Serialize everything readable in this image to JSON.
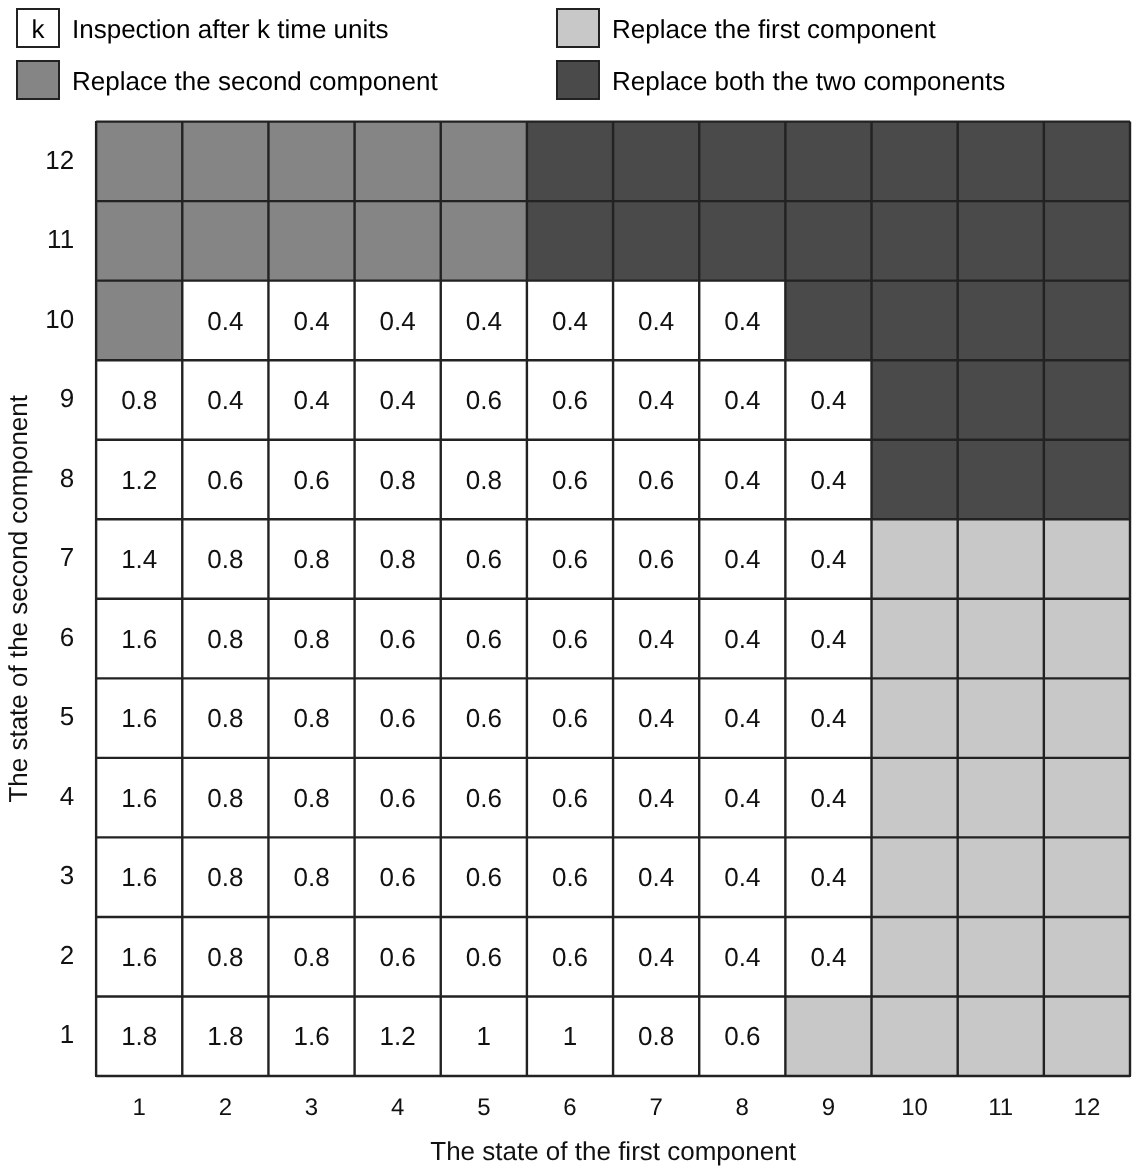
{
  "chart_data": {
    "type": "heatmap",
    "xlabel": "The state of the first component",
    "ylabel": "The state of the second component",
    "categories": [
      "1",
      "2",
      "3",
      "4",
      "5",
      "6",
      "7",
      "8",
      "9",
      "10",
      "11",
      "12"
    ],
    "y_categories": [
      "12",
      "11",
      "10",
      "9",
      "8",
      "7",
      "6",
      "5",
      "4",
      "3",
      "2",
      "1"
    ],
    "legend": "top",
    "data_labels": true,
    "annotations": [
      "k"
    ],
    "series": [
      {
        "name": "Inspection after k time units",
        "color": "#ffffff",
        "values": [
          null,
          null,
          null,
          null,
          null,
          null,
          null,
          null,
          null,
          null,
          null,
          null
        ]
      },
      {
        "name": "Replace the first component",
        "color": "#c8c8c8",
        "values": [
          null,
          null,
          null,
          null,
          null,
          null,
          null,
          null,
          null,
          null,
          null,
          null
        ]
      },
      {
        "name": "Replace the second component",
        "color": "#858585",
        "values": [
          null,
          null,
          null,
          null,
          null,
          null,
          null,
          null,
          null,
          null,
          null,
          null
        ]
      },
      {
        "name": "Replace both the two components",
        "color": "#4a4a4a",
        "values": [
          null,
          null,
          null,
          null,
          null,
          null,
          null,
          null,
          null,
          null,
          null,
          null
        ]
      }
    ],
    "cells": [
      [
        null,
        null,
        null,
        null,
        null,
        null,
        null,
        null,
        null,
        null,
        null,
        null
      ],
      [
        null,
        null,
        null,
        null,
        null,
        null,
        null,
        null,
        null,
        null,
        null,
        null
      ],
      [
        null,
        0.4,
        0.4,
        0.4,
        0.4,
        0.4,
        0.4,
        0.4,
        null,
        null,
        null,
        null
      ],
      [
        0.8,
        0.4,
        0.4,
        0.4,
        0.6,
        0.6,
        0.4,
        0.4,
        0.4,
        null,
        null,
        null
      ],
      [
        1.2,
        0.6,
        0.6,
        0.8,
        0.8,
        0.6,
        0.6,
        0.4,
        0.4,
        null,
        null,
        null
      ],
      [
        1.4,
        0.8,
        0.8,
        0.8,
        0.6,
        0.6,
        0.6,
        0.4,
        0.4,
        null,
        null,
        null
      ],
      [
        1.6,
        0.8,
        0.8,
        0.6,
        0.6,
        0.6,
        0.4,
        0.4,
        0.4,
        null,
        null,
        null
      ],
      [
        1.6,
        0.8,
        0.8,
        0.6,
        0.6,
        0.6,
        0.4,
        0.4,
        0.4,
        null,
        null,
        null
      ],
      [
        1.6,
        0.8,
        0.8,
        0.6,
        0.6,
        0.6,
        0.4,
        0.4,
        0.4,
        null,
        null,
        null
      ],
      [
        1.6,
        0.8,
        0.8,
        0.6,
        0.6,
        0.6,
        0.4,
        0.4,
        0.4,
        null,
        null,
        null
      ],
      [
        1.6,
        0.8,
        0.8,
        0.6,
        0.6,
        0.6,
        0.4,
        0.4,
        0.4,
        null,
        null,
        null
      ],
      [
        1.8,
        1.8,
        1.6,
        1.2,
        1,
        1,
        0.8,
        0.6,
        null,
        null,
        null,
        null
      ]
    ],
    "colors": [
      [
        "#858585",
        "#858585",
        "#858585",
        "#858585",
        "#858585",
        "#4a4a4a",
        "#4a4a4a",
        "#4a4a4a",
        "#4a4a4a",
        "#4a4a4a",
        "#4a4a4a",
        "#4a4a4a"
      ],
      [
        "#858585",
        "#858585",
        "#858585",
        "#858585",
        "#858585",
        "#4a4a4a",
        "#4a4a4a",
        "#4a4a4a",
        "#4a4a4a",
        "#4a4a4a",
        "#4a4a4a",
        "#4a4a4a"
      ],
      [
        "#858585",
        "#ffffff",
        "#ffffff",
        "#ffffff",
        "#ffffff",
        "#ffffff",
        "#ffffff",
        "#ffffff",
        "#4a4a4a",
        "#4a4a4a",
        "#4a4a4a",
        "#4a4a4a"
      ],
      [
        "#ffffff",
        "#ffffff",
        "#ffffff",
        "#ffffff",
        "#ffffff",
        "#ffffff",
        "#ffffff",
        "#ffffff",
        "#ffffff",
        "#4a4a4a",
        "#4a4a4a",
        "#4a4a4a"
      ],
      [
        "#ffffff",
        "#ffffff",
        "#ffffff",
        "#ffffff",
        "#ffffff",
        "#ffffff",
        "#ffffff",
        "#ffffff",
        "#ffffff",
        "#4a4a4a",
        "#4a4a4a",
        "#4a4a4a"
      ],
      [
        "#ffffff",
        "#ffffff",
        "#ffffff",
        "#ffffff",
        "#ffffff",
        "#ffffff",
        "#ffffff",
        "#ffffff",
        "#ffffff",
        "#c8c8c8",
        "#c8c8c8",
        "#c8c8c8"
      ],
      [
        "#ffffff",
        "#ffffff",
        "#ffffff",
        "#ffffff",
        "#ffffff",
        "#ffffff",
        "#ffffff",
        "#ffffff",
        "#ffffff",
        "#c8c8c8",
        "#c8c8c8",
        "#c8c8c8"
      ],
      [
        "#ffffff",
        "#ffffff",
        "#ffffff",
        "#ffffff",
        "#ffffff",
        "#ffffff",
        "#ffffff",
        "#ffffff",
        "#ffffff",
        "#c8c8c8",
        "#c8c8c8",
        "#c8c8c8"
      ],
      [
        "#ffffff",
        "#ffffff",
        "#ffffff",
        "#ffffff",
        "#ffffff",
        "#ffffff",
        "#ffffff",
        "#ffffff",
        "#ffffff",
        "#c8c8c8",
        "#c8c8c8",
        "#c8c8c8"
      ],
      [
        "#ffffff",
        "#ffffff",
        "#ffffff",
        "#ffffff",
        "#ffffff",
        "#ffffff",
        "#ffffff",
        "#ffffff",
        "#ffffff",
        "#c8c8c8",
        "#c8c8c8",
        "#c8c8c8"
      ],
      [
        "#ffffff",
        "#ffffff",
        "#ffffff",
        "#ffffff",
        "#ffffff",
        "#ffffff",
        "#ffffff",
        "#ffffff",
        "#ffffff",
        "#c8c8c8",
        "#c8c8c8",
        "#c8c8c8"
      ],
      [
        "#ffffff",
        "#ffffff",
        "#ffffff",
        "#ffffff",
        "#ffffff",
        "#ffffff",
        "#ffffff",
        "#ffffff",
        "#c8c8c8",
        "#c8c8c8",
        "#c8c8c8",
        "#c8c8c8"
      ]
    ]
  }
}
